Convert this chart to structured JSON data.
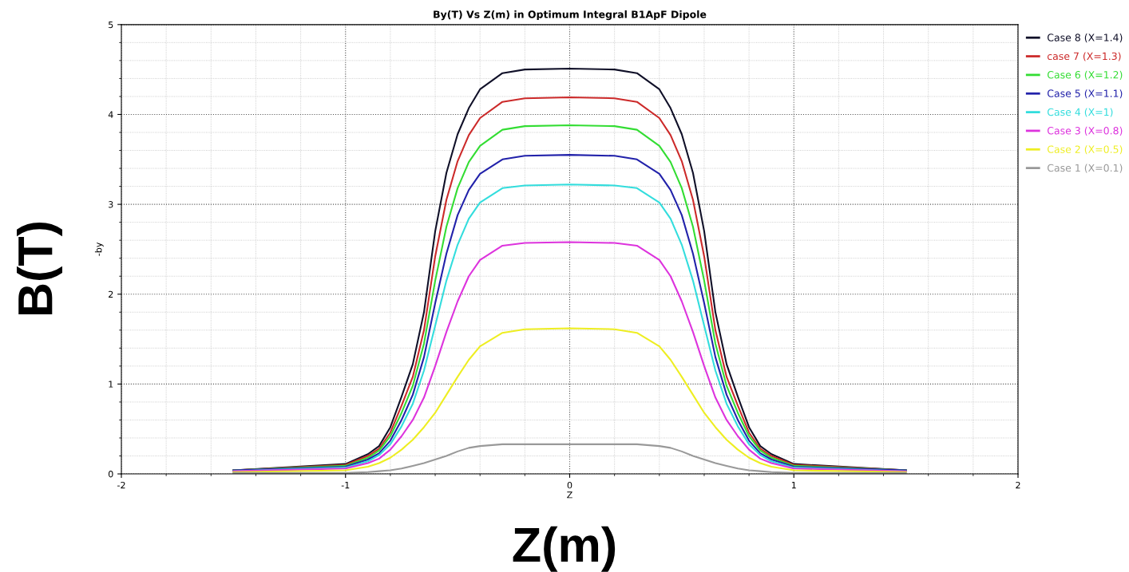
{
  "chart_data": {
    "type": "line",
    "title": "By(T) Vs Z(m) in Optimum Integral B1ApF Dipole",
    "xlabel": "Z",
    "ylabel": "-by",
    "annotations": [
      "B(T)",
      "Z(m)"
    ],
    "x": [
      -1.5,
      -1.0,
      -0.9,
      -0.85,
      -0.8,
      -0.75,
      -0.7,
      -0.65,
      -0.6,
      -0.55,
      -0.5,
      -0.45,
      -0.4,
      -0.3,
      -0.2,
      0,
      0.2,
      0.3,
      0.4,
      0.45,
      0.5,
      0.55,
      0.6,
      0.65,
      0.7,
      0.75,
      0.8,
      0.85,
      0.9,
      1.0,
      1.5
    ],
    "xlim": [
      -2,
      2
    ],
    "xticks": [
      -2,
      -1,
      0,
      1,
      2
    ],
    "ylim": [
      0,
      5
    ],
    "yticks": [
      0,
      1,
      2,
      3,
      4,
      5
    ],
    "grid": true,
    "legend": "top right",
    "marker": "none",
    "line_style": "solid",
    "series": [
      {
        "name": "Case 8 (X=1.4)",
        "color": "#101028",
        "values": [
          0.04,
          0.11,
          0.22,
          0.31,
          0.52,
          0.86,
          1.22,
          1.8,
          2.7,
          3.35,
          3.78,
          4.07,
          4.28,
          4.46,
          4.5,
          4.51,
          4.5,
          4.46,
          4.28,
          4.07,
          3.78,
          3.35,
          2.7,
          1.8,
          1.22,
          0.86,
          0.52,
          0.31,
          0.22,
          0.11,
          0.04
        ]
      },
      {
        "name": "case 7 (X=1.3)",
        "color": "#cc2a2a",
        "values": [
          0.04,
          0.1,
          0.2,
          0.28,
          0.46,
          0.76,
          1.08,
          1.6,
          2.42,
          3.05,
          3.48,
          3.77,
          3.96,
          4.14,
          4.18,
          4.19,
          4.18,
          4.14,
          3.96,
          3.77,
          3.48,
          3.05,
          2.42,
          1.6,
          1.08,
          0.76,
          0.46,
          0.28,
          0.2,
          0.1,
          0.04
        ]
      },
      {
        "name": "Case 6 (X=1.2)",
        "color": "#33dd33",
        "values": [
          0.04,
          0.09,
          0.18,
          0.26,
          0.42,
          0.68,
          0.98,
          1.45,
          2.15,
          2.75,
          3.18,
          3.47,
          3.65,
          3.83,
          3.87,
          3.88,
          3.87,
          3.83,
          3.65,
          3.47,
          3.18,
          2.75,
          2.15,
          1.45,
          0.98,
          0.68,
          0.42,
          0.26,
          0.18,
          0.09,
          0.04
        ]
      },
      {
        "name": "Case 5 (X=1.1)",
        "color": "#2222aa",
        "values": [
          0.04,
          0.08,
          0.16,
          0.23,
          0.37,
          0.6,
          0.88,
          1.3,
          1.9,
          2.45,
          2.88,
          3.16,
          3.34,
          3.5,
          3.54,
          3.55,
          3.54,
          3.5,
          3.34,
          3.16,
          2.88,
          2.45,
          1.9,
          1.3,
          0.88,
          0.6,
          0.37,
          0.23,
          0.16,
          0.08,
          0.04
        ]
      },
      {
        "name": "Case 4 (X=1)",
        "color": "#33dddd",
        "values": [
          0.03,
          0.07,
          0.14,
          0.21,
          0.33,
          0.53,
          0.78,
          1.15,
          1.65,
          2.15,
          2.55,
          2.84,
          3.02,
          3.18,
          3.21,
          3.22,
          3.21,
          3.18,
          3.02,
          2.84,
          2.55,
          2.15,
          1.65,
          1.15,
          0.78,
          0.53,
          0.33,
          0.21,
          0.14,
          0.07,
          0.03
        ]
      },
      {
        "name": "Case 3 (X=0.8)",
        "color": "#dd33dd",
        "values": [
          0.03,
          0.06,
          0.12,
          0.17,
          0.27,
          0.42,
          0.6,
          0.85,
          1.2,
          1.58,
          1.92,
          2.2,
          2.38,
          2.54,
          2.57,
          2.58,
          2.57,
          2.54,
          2.38,
          2.2,
          1.92,
          1.58,
          1.2,
          0.85,
          0.6,
          0.42,
          0.27,
          0.17,
          0.12,
          0.06,
          0.03
        ]
      },
      {
        "name": "Case 2 (X=0.5)",
        "color": "#eeee22",
        "values": [
          0.02,
          0.04,
          0.08,
          0.12,
          0.18,
          0.27,
          0.38,
          0.52,
          0.68,
          0.88,
          1.08,
          1.27,
          1.42,
          1.57,
          1.61,
          1.62,
          1.61,
          1.57,
          1.42,
          1.27,
          1.08,
          0.88,
          0.68,
          0.52,
          0.38,
          0.27,
          0.18,
          0.12,
          0.08,
          0.04,
          0.02
        ]
      },
      {
        "name": "Case 1 (X=0.1)",
        "color": "#999999",
        "values": [
          0.01,
          0.01,
          0.02,
          0.03,
          0.04,
          0.06,
          0.09,
          0.12,
          0.16,
          0.2,
          0.25,
          0.29,
          0.31,
          0.33,
          0.33,
          0.33,
          0.33,
          0.33,
          0.31,
          0.29,
          0.25,
          0.2,
          0.16,
          0.12,
          0.09,
          0.06,
          0.04,
          0.03,
          0.02,
          0.01,
          0.01
        ]
      }
    ]
  }
}
